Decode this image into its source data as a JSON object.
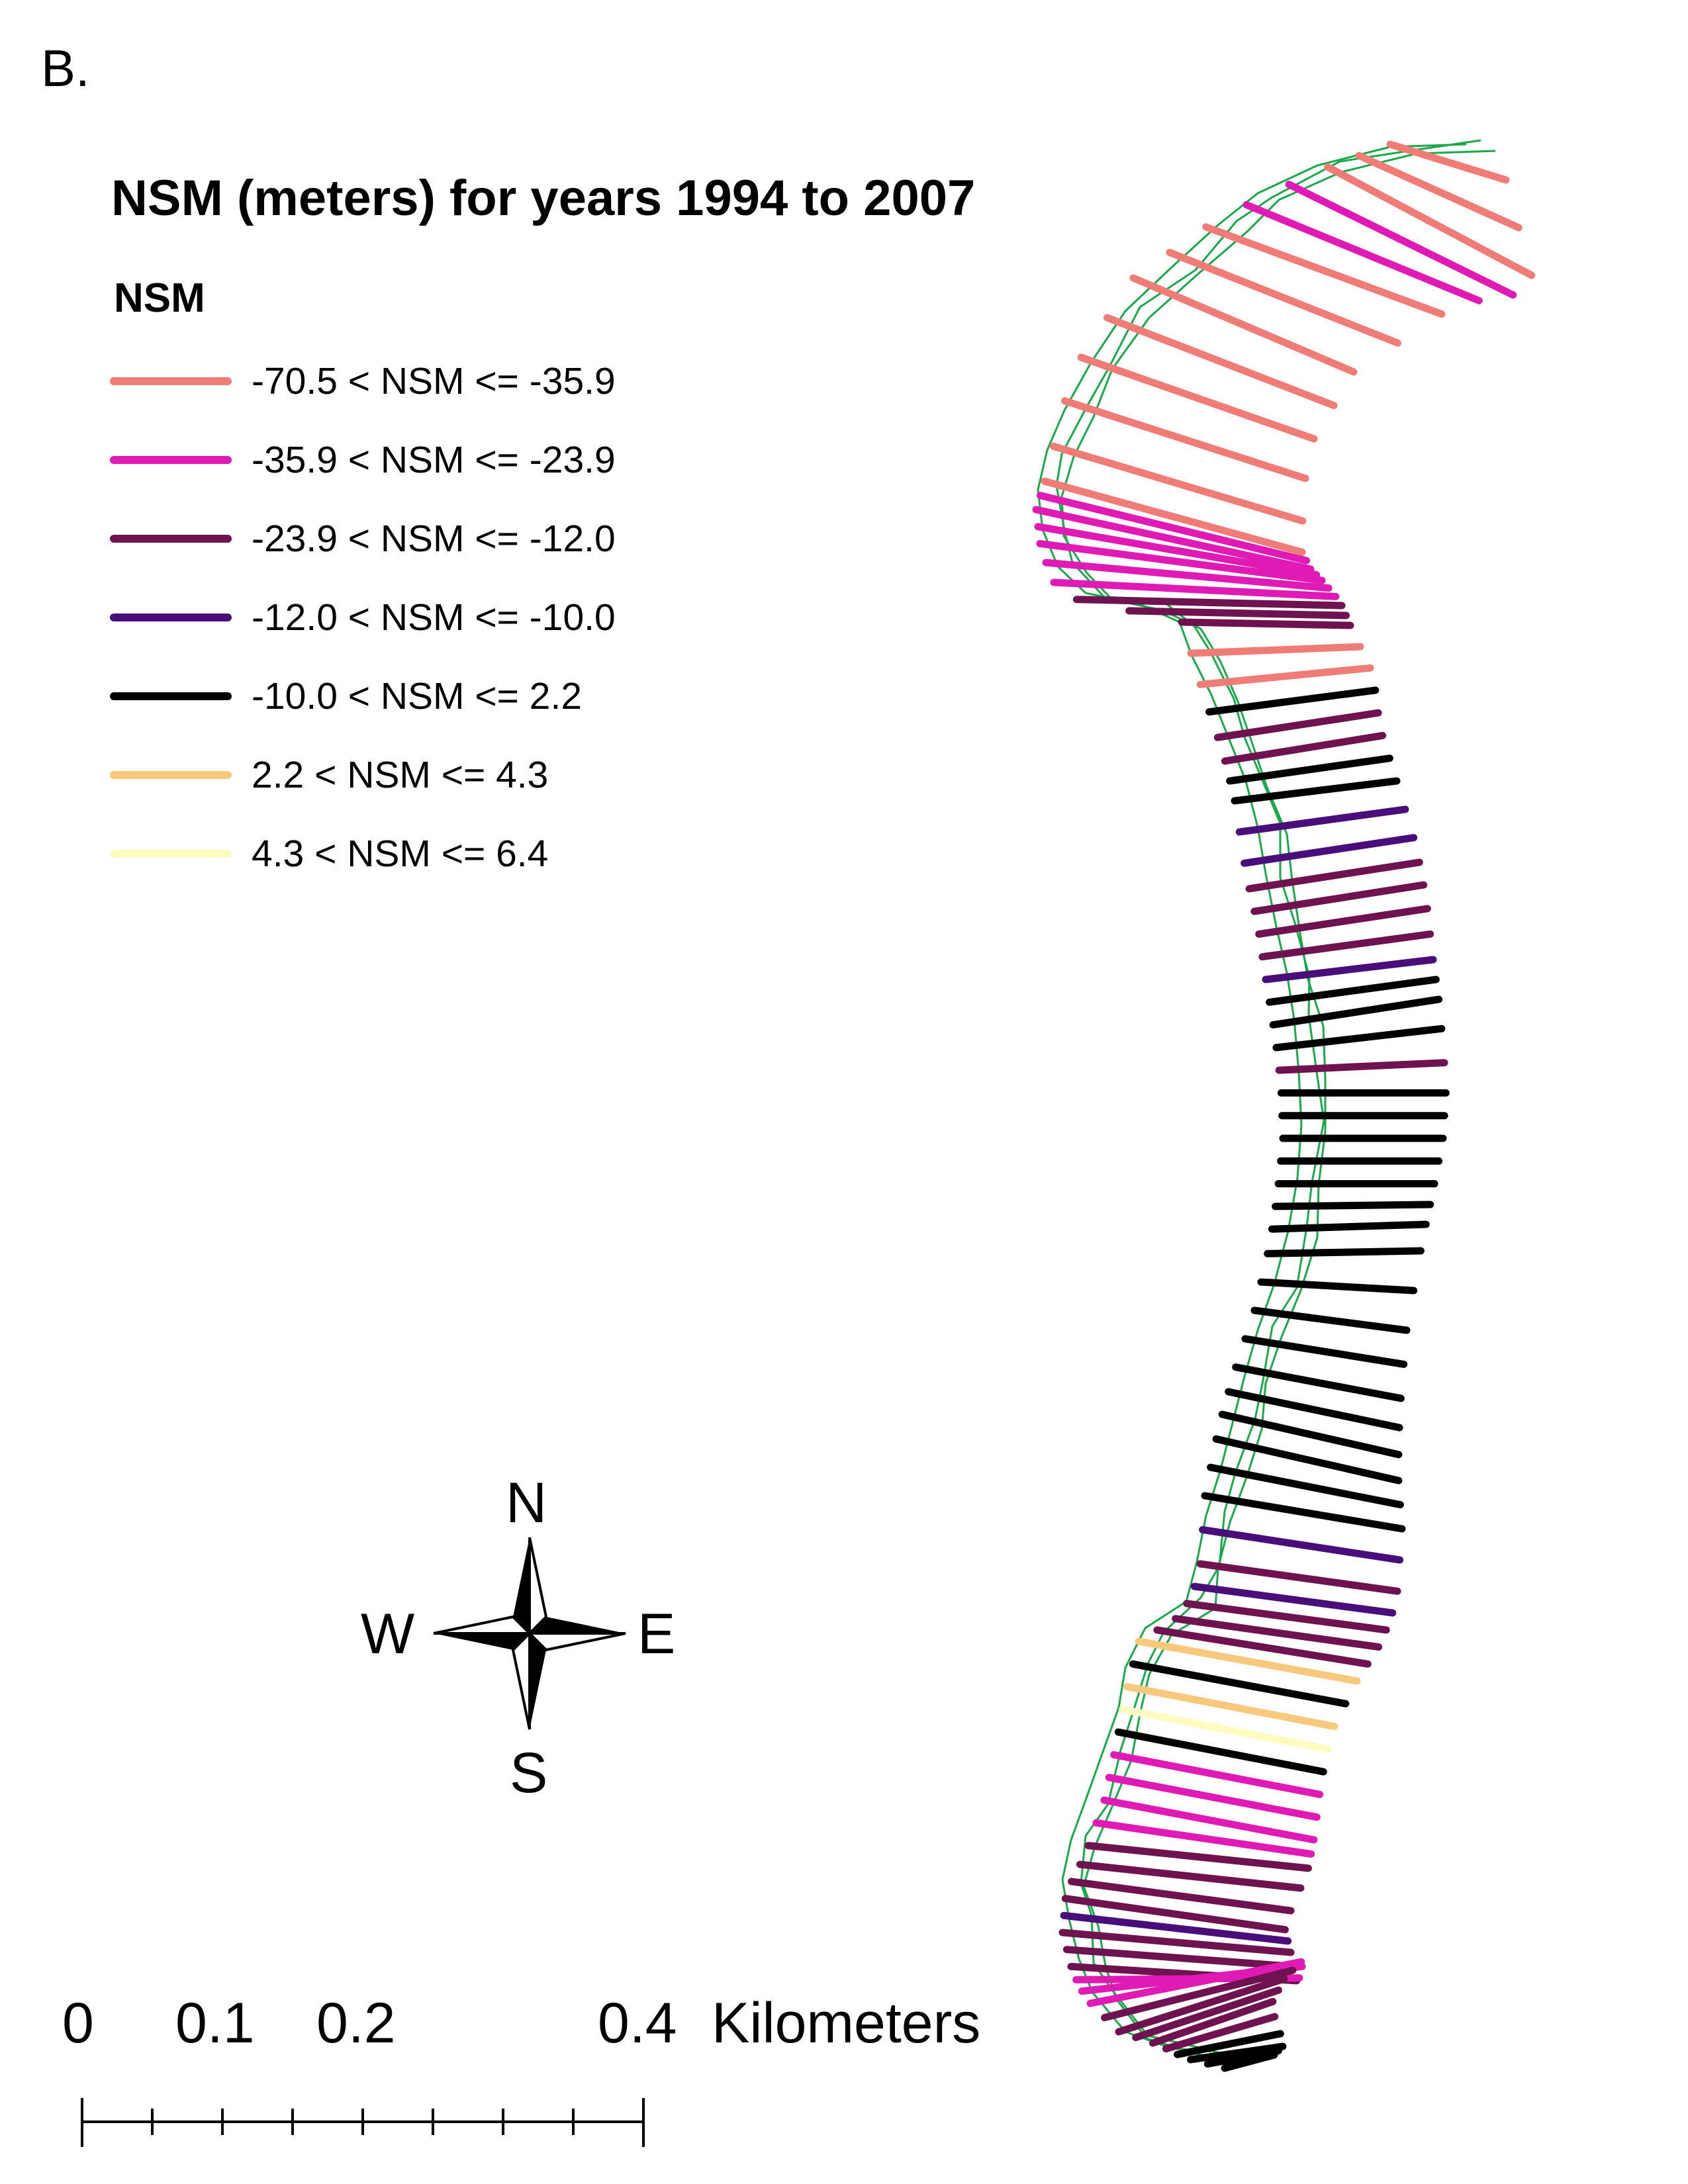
{
  "panel_label": "B.",
  "legend": {
    "title": "NSM (meters) for years 1994 to 2007",
    "subtitle": "NSM",
    "items": [
      {
        "label": "-70.5 < NSM <= -35.9",
        "color": "#f07c78"
      },
      {
        "label": "-35.9 < NSM <= -23.9",
        "color": "#e01ab4"
      },
      {
        "label": "-23.9 < NSM <= -12.0",
        "color": "#6e1250"
      },
      {
        "label": "-12.0 < NSM <= -10.0",
        "color": "#4a0e7a"
      },
      {
        "label": "-10.0 < NSM <= 2.2",
        "color": "#000000"
      },
      {
        "label": "2.2 < NSM <= 4.3",
        "color": "#f8c87c"
      },
      {
        "label": "4.3 < NSM <= 6.4",
        "color": "#fcfcc0"
      }
    ]
  },
  "shoreline_color": "#1aa84a",
  "transect_classes": [
    0,
    0,
    0,
    1,
    1,
    0,
    0,
    0,
    0,
    0,
    0,
    0,
    0,
    1,
    1,
    1,
    1,
    1,
    1,
    2,
    2,
    2,
    0,
    0,
    4,
    2,
    2,
    4,
    4,
    3,
    3,
    2,
    2,
    2,
    2,
    3,
    4,
    4,
    4,
    2,
    4,
    4,
    4,
    4,
    4,
    4,
    4,
    4,
    4,
    4,
    4,
    4,
    4,
    4,
    4,
    4,
    4,
    3,
    2,
    3,
    2,
    2,
    2,
    5,
    4,
    5,
    6,
    4,
    1,
    1,
    1,
    1,
    2,
    2,
    2,
    2,
    3,
    2,
    2,
    2,
    1,
    1,
    1,
    2,
    2,
    2,
    2,
    2,
    4,
    4,
    4,
    4
  ],
  "compass": {
    "n": "N",
    "s": "S",
    "e": "E",
    "w": "W"
  },
  "scale_bar": {
    "ticks": [
      "0",
      "0.1",
      "0.2",
      "0.4"
    ],
    "unit": "Kilometers"
  }
}
